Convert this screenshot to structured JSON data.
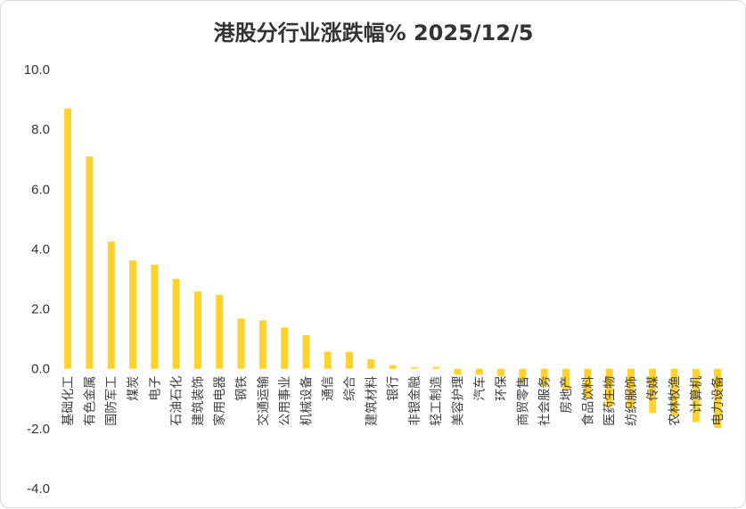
{
  "chart_data": {
    "type": "bar",
    "title": "港股分行业涨跌幅% 2025/12/5",
    "xlabel": "",
    "ylabel": "",
    "ylim": [
      -4.0,
      10.0
    ],
    "yticks": [
      "10.0",
      "8.0",
      "6.0",
      "4.0",
      "2.0",
      "0.0",
      "-2.0",
      "-4.0"
    ],
    "ytick_values": [
      10,
      8,
      6,
      4,
      2,
      0,
      -2,
      -4
    ],
    "grid": false,
    "legend": "none",
    "bar_color": "#FFD22E",
    "categories": [
      "基础化工",
      "有色金属",
      "国防军工",
      "煤炭",
      "电子",
      "石油石化",
      "建筑装饰",
      "家用电器",
      "钢铁",
      "交通运输",
      "公用事业",
      "机械设备",
      "通信",
      "综合",
      "建筑材料",
      "银行",
      "非银金融",
      "轻工制造",
      "美容护理",
      "汽车",
      "环保",
      "商贸零售",
      "社会服务",
      "房地产",
      "食品饮料",
      "医药生物",
      "纺织服饰",
      "传媒",
      "农林牧渔",
      "计算机",
      "电力设备"
    ],
    "values": [
      8.7,
      7.1,
      4.25,
      3.62,
      3.48,
      3.0,
      2.58,
      2.47,
      1.68,
      1.62,
      1.38,
      1.13,
      0.57,
      0.57,
      0.32,
      0.12,
      0.05,
      0.06,
      -0.2,
      -0.2,
      -0.24,
      -0.43,
      -0.57,
      -0.7,
      -0.97,
      -1.28,
      -1.32,
      -1.48,
      -1.58,
      -1.78,
      -1.98
    ]
  }
}
